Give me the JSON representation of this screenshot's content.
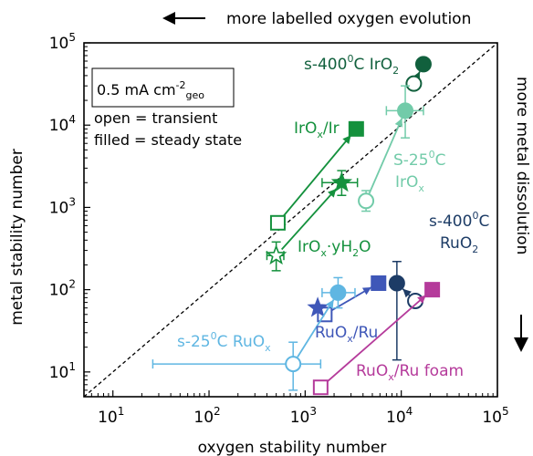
{
  "chart_data": {
    "type": "scatter",
    "xlabel": "oxygen stability number",
    "ylabel": "metal stability number",
    "xscale": "log",
    "yscale": "log",
    "xlim": [
      5,
      100000
    ],
    "ylim": [
      5,
      100000
    ],
    "x_ticks": [
      {
        "v": 10,
        "m": "1"
      },
      {
        "v": 100,
        "m": "2"
      },
      {
        "v": 1000,
        "m": "3"
      },
      {
        "v": 10000,
        "m": "4"
      },
      {
        "v": 100000,
        "m": "5"
      }
    ],
    "y_ticks": [
      {
        "v": 10,
        "m": "1"
      },
      {
        "v": 100,
        "m": "2"
      },
      {
        "v": 1000,
        "m": "3"
      },
      {
        "v": 10000,
        "m": "4"
      },
      {
        "v": 100000,
        "m": "5"
      }
    ],
    "tick_base": "10",
    "diagonal": "dashed y = x",
    "top_annotation": "more labelled oxygen evolution",
    "right_annotation": "more metal dissolution",
    "legend": {
      "density_prefix": "0.5 mA cm",
      "density_exp": "-2",
      "density_sub": "geo",
      "open": "open = transient",
      "filled": "filled = steady state"
    },
    "series": [
      {
        "name": "s-400⁰C IrO₂",
        "color": "#11603d",
        "marker": "circle",
        "open": {
          "x": 13500,
          "y": 32000
        },
        "filled": {
          "x": 17000,
          "y": 55000
        }
      },
      {
        "name": "S-25⁰C IrOₓ",
        "color": "#72cba9",
        "marker": "circle",
        "open": {
          "x": 4300,
          "y": 1200,
          "yerr": [
            900,
            1600
          ]
        },
        "filled": {
          "x": 11000,
          "y": 15000,
          "xerr": [
            7000,
            17000
          ],
          "yerr": [
            7000,
            30000
          ]
        }
      },
      {
        "name": "IrOₓ/Ir",
        "color": "#14913d",
        "marker": "square",
        "open": {
          "x": 520,
          "y": 650
        },
        "filled": {
          "x": 3400,
          "y": 9000
        }
      },
      {
        "name": "IrOₓ·yH₂O",
        "color": "#14913d",
        "marker": "star",
        "open": {
          "x": 500,
          "y": 260,
          "xerr": [
            400,
            600
          ],
          "yerr": [
            170,
            380
          ]
        },
        "filled": {
          "x": 2400,
          "y": 2000,
          "xerr": [
            1500,
            3500
          ],
          "yerr": [
            1400,
            2800
          ]
        }
      },
      {
        "name": "s-400⁰C RuO₂",
        "color": "#1d3c66",
        "marker": "circle",
        "open": {
          "x": 14000,
          "y": 73
        },
        "filled": {
          "x": 9000,
          "y": 120,
          "yerr": [
            14,
            220
          ]
        }
      },
      {
        "name": "RuOₓ/Ru",
        "color": "#3f57b8",
        "marker": "square",
        "open": {
          "x": 1600,
          "y": 50
        },
        "filled": {
          "x": 5800,
          "y": 120
        }
      },
      {
        "name": "RuOₓ/Ru_star",
        "color": "#3f57b8",
        "marker": "star",
        "filled": {
          "x": 1350,
          "y": 60
        }
      },
      {
        "name": "s-25⁰C RuOₓ",
        "color": "#5fb6e2",
        "marker": "circle",
        "open": {
          "x": 750,
          "y": 12.5,
          "xerr": [
            26,
            1450
          ],
          "yerr": [
            6,
            23
          ]
        },
        "filled": {
          "x": 2200,
          "y": 92,
          "xerr": [
            1500,
            3300
          ],
          "yerr": [
            60,
            140
          ]
        }
      },
      {
        "name": "RuOₓ/Ru foam",
        "color": "#b53b9b",
        "marker": "square",
        "open": {
          "x": 1450,
          "y": 6.5
        },
        "filled": {
          "x": 21000,
          "y": 100
        }
      }
    ],
    "labels": [
      {
        "id": "lbl-s400-iro2",
        "parts": [
          [
            "s-400",
            ""
          ],
          [
            "0",
            "sup"
          ],
          [
            "C IrO",
            ""
          ],
          [
            "2",
            "sub"
          ]
        ],
        "color": "#11603d"
      },
      {
        "id": "lbl-iro2-ir",
        "parts": [
          [
            "IrO",
            ""
          ],
          [
            "x",
            "sub"
          ],
          [
            "/Ir",
            ""
          ]
        ],
        "color": "#14913d"
      },
      {
        "id": "lbl-s25-irox-a",
        "parts": [
          [
            "S-25",
            ""
          ],
          [
            "0",
            "sup"
          ],
          [
            "C",
            ""
          ]
        ],
        "color": "#72cba9"
      },
      {
        "id": "lbl-s25-irox-b",
        "parts": [
          [
            "IrO",
            ""
          ],
          [
            "x",
            "sub"
          ]
        ],
        "color": "#72cba9"
      },
      {
        "id": "lbl-iro-yh2o",
        "parts": [
          [
            "IrO",
            ""
          ],
          [
            "x",
            "sub"
          ],
          [
            "·yH",
            ""
          ],
          [
            "2",
            "sub"
          ],
          [
            "O",
            ""
          ]
        ],
        "color": "#14913d"
      },
      {
        "id": "lbl-s400-ruo2-a",
        "parts": [
          [
            "s-400",
            ""
          ],
          [
            "0",
            "sup"
          ],
          [
            "C",
            ""
          ]
        ],
        "color": "#1d3c66"
      },
      {
        "id": "lbl-s400-ruo2-b",
        "parts": [
          [
            "RuO",
            ""
          ],
          [
            "2",
            "sub"
          ]
        ],
        "color": "#1d3c66"
      },
      {
        "id": "lbl-s25-ruox",
        "parts": [
          [
            "s-25",
            ""
          ],
          [
            "0",
            "sup"
          ],
          [
            "C RuO",
            ""
          ],
          [
            "x",
            "sub"
          ]
        ],
        "color": "#5fb6e2"
      },
      {
        "id": "lbl-ruox-ru",
        "parts": [
          [
            "RuO",
            ""
          ],
          [
            "x",
            "sub"
          ],
          [
            "/Ru",
            ""
          ]
        ],
        "color": "#3f57b8"
      },
      {
        "id": "lbl-ruox-ru-foam",
        "parts": [
          [
            "RuO",
            ""
          ],
          [
            "x",
            "sub"
          ],
          [
            "/Ru foam",
            ""
          ]
        ],
        "color": "#b53b9b"
      }
    ]
  }
}
